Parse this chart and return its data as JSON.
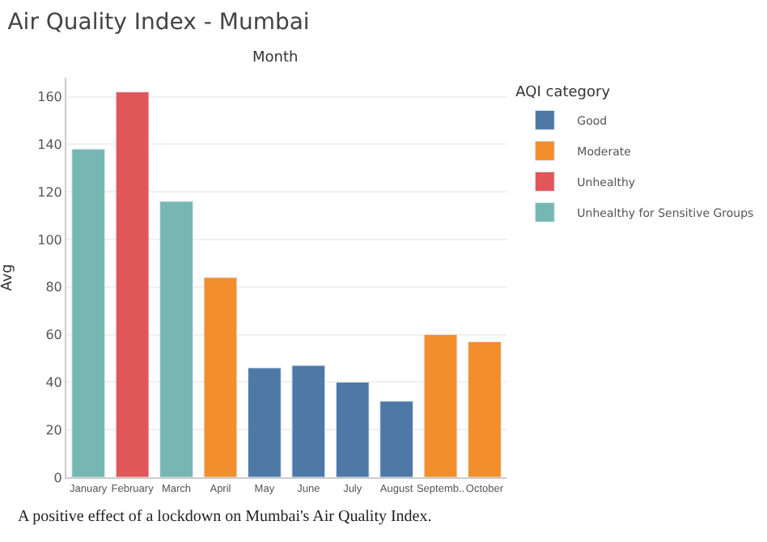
{
  "chart_data": {
    "type": "bar",
    "title": "Air Quality Index - Mumbai",
    "xlabel": "Month",
    "ylabel": "Avg",
    "legend_title": "AQI category",
    "categories": [
      "January",
      "February",
      "March",
      "April",
      "May",
      "June",
      "July",
      "August",
      "Septemb..",
      "October"
    ],
    "series": [
      {
        "name": "Good",
        "color": "#4e79a7",
        "values": [
          null,
          null,
          null,
          null,
          46,
          47,
          40,
          32,
          null,
          null
        ]
      },
      {
        "name": "Moderate",
        "color": "#f28e2b",
        "values": [
          null,
          null,
          null,
          84,
          null,
          null,
          null,
          null,
          60,
          57
        ]
      },
      {
        "name": "Unhealthy",
        "color": "#e15759",
        "values": [
          null,
          162,
          null,
          null,
          null,
          null,
          null,
          null,
          null,
          null
        ]
      },
      {
        "name": "Unhealthy for Sensitive Groups",
        "color": "#76b7b2",
        "values": [
          138,
          null,
          116,
          null,
          null,
          null,
          null,
          null,
          null,
          null
        ]
      }
    ],
    "ylim": [
      0,
      168
    ],
    "yticks": [
      0,
      20,
      40,
      60,
      80,
      100,
      120,
      140,
      160
    ],
    "grid": "y",
    "legend": "top right",
    "annotations": [
      "A positive effect of a lockdown on Mumbai's Air Quality Index."
    ]
  }
}
